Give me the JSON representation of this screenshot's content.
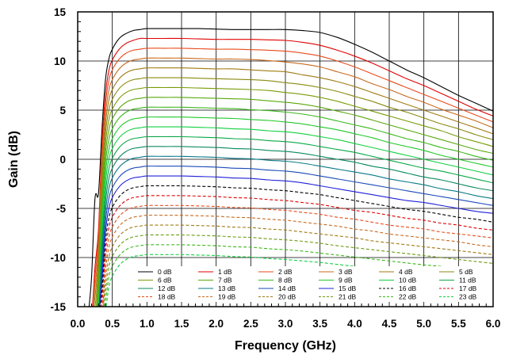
{
  "chart_data": {
    "type": "line",
    "xlabel": "Frequency (GHz)",
    "ylabel": "Gain (dB)",
    "xlim": [
      0,
      6
    ],
    "ylim": [
      -15,
      15
    ],
    "x_ticks": [
      "0.0",
      "0.5",
      "1.0",
      "1.5",
      "2.0",
      "2.5",
      "3.0",
      "3.5",
      "4.0",
      "4.5",
      "5.0",
      "5.5",
      "6.0"
    ],
    "y_ticks": [
      "-15",
      "-10",
      "-5",
      "0",
      "5",
      "10",
      "15"
    ],
    "grid": true,
    "legend_placement": "bottom-center",
    "legend_columns": 6,
    "x": [
      0.15,
      0.2,
      0.25,
      0.3,
      0.35,
      0.4,
      0.45,
      0.5,
      0.6,
      0.7,
      0.8,
      0.9,
      1.0,
      1.25,
      1.5,
      1.75,
      2.0,
      2.25,
      2.5,
      2.75,
      3.0,
      3.25,
      3.5,
      3.75,
      4.0,
      4.25,
      4.5,
      4.75,
      5.0,
      5.25,
      5.5,
      5.75,
      6.0
    ],
    "series": [
      {
        "name": "0 dB",
        "color": "#000000",
        "dash": false,
        "values": [
          -16.0,
          -12.0,
          -4.0,
          -3.5,
          3.0,
          8.0,
          10.2,
          11.2,
          12.3,
          12.8,
          13.1,
          13.2,
          13.3,
          13.3,
          13.3,
          13.3,
          13.25,
          13.2,
          13.2,
          13.2,
          13.2,
          13.1,
          12.9,
          12.4,
          11.7,
          10.9,
          10.0,
          9.1,
          8.3,
          7.4,
          6.5,
          5.7,
          4.9
        ]
      },
      {
        "name": "1 dB",
        "color": "#e00000",
        "dash": false,
        "values": [
          -16.0,
          -16.0,
          -11.0,
          -7.2,
          1.5,
          6.5,
          9.0,
          10.1,
          11.2,
          11.8,
          12.1,
          12.3,
          12.3,
          12.3,
          12.3,
          12.25,
          12.2,
          12.2,
          12.2,
          12.15,
          12.1,
          11.9,
          11.6,
          11.1,
          10.5,
          9.8,
          9.0,
          8.2,
          7.5,
          6.7,
          5.9,
          5.1,
          4.4
        ]
      },
      {
        "name": "2 dB",
        "color": "#e84a1a",
        "dash": false,
        "values": [
          -16.0,
          -16.0,
          -12.0,
          -8.0,
          0.6,
          5.5,
          8.0,
          9.1,
          10.2,
          10.8,
          11.1,
          11.2,
          11.3,
          11.3,
          11.3,
          11.25,
          11.2,
          11.2,
          11.15,
          11.1,
          11.0,
          10.8,
          10.5,
          10.0,
          9.4,
          8.7,
          8.0,
          7.3,
          6.6,
          5.9,
          5.2,
          4.5,
          3.8
        ]
      },
      {
        "name": "3 dB",
        "color": "#c86a1e",
        "dash": false,
        "values": [
          -16.0,
          -16.0,
          -13.0,
          -9.0,
          -0.4,
          4.5,
          7.0,
          8.1,
          9.2,
          9.8,
          10.1,
          10.2,
          10.3,
          10.3,
          10.3,
          10.25,
          10.2,
          10.2,
          10.15,
          10.05,
          9.9,
          9.7,
          9.4,
          8.9,
          8.4,
          7.7,
          7.1,
          6.4,
          5.8,
          5.1,
          4.5,
          3.9,
          3.2
        ]
      },
      {
        "name": "4 dB",
        "color": "#a07a12",
        "dash": false,
        "values": [
          -16.0,
          -16.0,
          -14.0,
          -10.0,
          -1.4,
          3.5,
          6.0,
          7.1,
          8.2,
          8.8,
          9.1,
          9.2,
          9.3,
          9.3,
          9.3,
          9.25,
          9.2,
          9.2,
          9.1,
          9.0,
          8.9,
          8.6,
          8.3,
          7.9,
          7.4,
          6.8,
          6.2,
          5.6,
          5.0,
          4.4,
          3.8,
          3.2,
          2.6
        ]
      },
      {
        "name": "5 dB",
        "color": "#8a8a10",
        "dash": false,
        "values": [
          -16.0,
          -16.0,
          -15.0,
          -11.0,
          -2.4,
          2.5,
          5.0,
          6.1,
          7.2,
          7.8,
          8.1,
          8.2,
          8.3,
          8.3,
          8.3,
          8.25,
          8.2,
          8.15,
          8.1,
          8.0,
          7.8,
          7.6,
          7.3,
          6.9,
          6.4,
          5.9,
          5.3,
          4.8,
          4.2,
          3.6,
          3.1,
          2.5,
          2.0
        ]
      },
      {
        "name": "6 dB",
        "color": "#7a9c0a",
        "dash": false,
        "values": [
          -16.0,
          -16.0,
          -16.0,
          -12.0,
          -3.4,
          1.5,
          4.0,
          5.1,
          6.2,
          6.8,
          7.1,
          7.2,
          7.3,
          7.3,
          7.3,
          7.25,
          7.2,
          7.15,
          7.1,
          7.0,
          6.8,
          6.6,
          6.3,
          5.9,
          5.4,
          4.9,
          4.4,
          3.9,
          3.4,
          2.9,
          2.3,
          1.8,
          1.3
        ]
      },
      {
        "name": "7 dB",
        "color": "#5aa80c",
        "dash": false,
        "values": [
          -16.0,
          -16.0,
          -16.0,
          -13.0,
          -4.4,
          0.5,
          3.0,
          4.1,
          5.2,
          5.8,
          6.1,
          6.2,
          6.3,
          6.3,
          6.3,
          6.25,
          6.2,
          6.15,
          6.1,
          5.95,
          5.8,
          5.6,
          5.3,
          4.9,
          4.5,
          4.0,
          3.5,
          3.0,
          2.5,
          2.0,
          1.5,
          1.0,
          0.6
        ]
      },
      {
        "name": "8 dB",
        "color": "#3cb81c",
        "dash": false,
        "values": [
          -16.0,
          -16.0,
          -16.0,
          -14.0,
          -5.4,
          -0.5,
          2.0,
          3.1,
          4.2,
          4.8,
          5.1,
          5.2,
          5.3,
          5.3,
          5.3,
          5.25,
          5.2,
          5.15,
          5.05,
          4.95,
          4.8,
          4.6,
          4.3,
          3.9,
          3.5,
          3.1,
          2.6,
          2.1,
          1.7,
          1.2,
          0.8,
          0.3,
          -0.1
        ]
      },
      {
        "name": "9 dB",
        "color": "#22c82a",
        "dash": false,
        "values": [
          -16.0,
          -16.0,
          -16.0,
          -15.0,
          -6.4,
          -1.5,
          1.0,
          2.1,
          3.2,
          3.8,
          4.1,
          4.2,
          4.3,
          4.3,
          4.3,
          4.25,
          4.2,
          4.15,
          4.05,
          3.95,
          3.8,
          3.6,
          3.3,
          3.0,
          2.6,
          2.2,
          1.7,
          1.3,
          0.9,
          0.4,
          0.0,
          -0.4,
          -0.8
        ]
      },
      {
        "name": "10 dB",
        "color": "#10d040",
        "dash": false,
        "values": [
          -16.0,
          -16.0,
          -16.0,
          -16.0,
          -7.4,
          -2.5,
          0.0,
          1.1,
          2.2,
          2.8,
          3.1,
          3.2,
          3.3,
          3.3,
          3.3,
          3.25,
          3.2,
          3.1,
          3.05,
          2.9,
          2.8,
          2.6,
          2.3,
          2.0,
          1.6,
          1.2,
          0.8,
          0.4,
          0.0,
          -0.4,
          -0.8,
          -1.2,
          -1.6
        ]
      },
      {
        "name": "11 dB",
        "color": "#0aa848",
        "dash": false,
        "values": [
          -16.0,
          -16.0,
          -16.0,
          -16.0,
          -8.4,
          -3.5,
          -1.0,
          0.1,
          1.2,
          1.8,
          2.1,
          2.2,
          2.3,
          2.3,
          2.3,
          2.25,
          2.2,
          2.1,
          2.05,
          1.9,
          1.8,
          1.6,
          1.3,
          1.0,
          0.7,
          0.3,
          -0.1,
          -0.5,
          -0.9,
          -1.2,
          -1.6,
          -2.0,
          -2.4
        ]
      },
      {
        "name": "12 dB",
        "color": "#0a8a60",
        "dash": false,
        "values": [
          -16.0,
          -16.0,
          -16.0,
          -16.0,
          -9.4,
          -4.5,
          -2.0,
          -0.9,
          0.2,
          0.8,
          1.1,
          1.2,
          1.3,
          1.3,
          1.3,
          1.25,
          1.2,
          1.1,
          1.05,
          0.9,
          0.8,
          0.6,
          0.3,
          0.0,
          -0.3,
          -0.7,
          -1.0,
          -1.4,
          -1.8,
          -2.1,
          -2.5,
          -2.9,
          -3.2
        ]
      },
      {
        "name": "13 dB",
        "color": "#0a7a88",
        "dash": false,
        "values": [
          -16.0,
          -16.0,
          -16.0,
          -16.0,
          -10.4,
          -5.5,
          -3.0,
          -1.9,
          -0.8,
          -0.2,
          0.1,
          0.2,
          0.3,
          0.3,
          0.3,
          0.25,
          0.2,
          0.1,
          0.05,
          -0.1,
          -0.2,
          -0.4,
          -0.7,
          -1.0,
          -1.3,
          -1.6,
          -2.0,
          -2.3,
          -2.6,
          -3.0,
          -3.3,
          -3.7,
          -4.0
        ]
      },
      {
        "name": "14 dB",
        "color": "#1a4ab8",
        "dash": false,
        "values": [
          -16.0,
          -16.0,
          -16.0,
          -16.0,
          -11.4,
          -6.5,
          -4.0,
          -2.9,
          -1.8,
          -1.2,
          -0.9,
          -0.8,
          -0.7,
          -0.7,
          -0.7,
          -0.75,
          -0.8,
          -0.9,
          -0.95,
          -1.1,
          -1.2,
          -1.4,
          -1.7,
          -2.0,
          -2.3,
          -2.6,
          -2.9,
          -3.2,
          -3.5,
          -3.8,
          -4.1,
          -4.4,
          -4.7
        ]
      },
      {
        "name": "15 dB",
        "color": "#2020d8",
        "dash": false,
        "values": [
          -16.0,
          -16.0,
          -16.0,
          -16.0,
          -12.4,
          -7.5,
          -5.0,
          -3.9,
          -2.8,
          -2.2,
          -1.9,
          -1.8,
          -1.7,
          -1.7,
          -1.7,
          -1.75,
          -1.8,
          -1.9,
          -1.95,
          -2.1,
          -2.2,
          -2.4,
          -2.7,
          -3.0,
          -3.3,
          -3.6,
          -3.9,
          -4.2,
          -4.4,
          -4.7,
          -5.0,
          -5.3,
          -5.5
        ]
      },
      {
        "name": "16 dB",
        "color": "#000000",
        "dash": true,
        "values": [
          -16.0,
          -16.0,
          -16.0,
          -16.0,
          -13.4,
          -8.5,
          -6.0,
          -4.9,
          -3.8,
          -3.2,
          -2.9,
          -2.8,
          -2.7,
          -2.7,
          -2.7,
          -2.75,
          -2.8,
          -2.9,
          -2.95,
          -3.1,
          -3.2,
          -3.4,
          -3.6,
          -3.9,
          -4.2,
          -4.5,
          -4.8,
          -5.1,
          -5.3,
          -5.6,
          -5.9,
          -6.1,
          -6.4
        ]
      },
      {
        "name": "17 dB",
        "color": "#e00000",
        "dash": true,
        "values": [
          -16.0,
          -16.0,
          -16.0,
          -16.0,
          -14.4,
          -9.5,
          -7.0,
          -5.9,
          -4.8,
          -4.2,
          -3.9,
          -3.8,
          -3.7,
          -3.7,
          -3.7,
          -3.75,
          -3.8,
          -3.9,
          -3.95,
          -4.1,
          -4.2,
          -4.4,
          -4.6,
          -4.9,
          -5.2,
          -5.4,
          -5.7,
          -6.0,
          -6.2,
          -6.5,
          -6.7,
          -7.0,
          -7.2
        ]
      },
      {
        "name": "18 dB",
        "color": "#e84a1a",
        "dash": true,
        "values": [
          -16.0,
          -16.0,
          -16.0,
          -16.0,
          -15.4,
          -10.5,
          -8.0,
          -6.9,
          -5.8,
          -5.2,
          -4.9,
          -4.8,
          -4.7,
          -4.7,
          -4.7,
          -4.75,
          -4.8,
          -4.9,
          -4.95,
          -5.1,
          -5.2,
          -5.4,
          -5.6,
          -5.9,
          -6.1,
          -6.4,
          -6.7,
          -6.9,
          -7.1,
          -7.4,
          -7.6,
          -7.8,
          -8.0
        ]
      },
      {
        "name": "19 dB",
        "color": "#c86a1e",
        "dash": true,
        "values": [
          -16.0,
          -16.0,
          -16.0,
          -16.0,
          -16.0,
          -11.5,
          -9.0,
          -7.9,
          -6.8,
          -6.2,
          -5.9,
          -5.8,
          -5.7,
          -5.7,
          -5.7,
          -5.75,
          -5.8,
          -5.9,
          -5.95,
          -6.1,
          -6.2,
          -6.4,
          -6.6,
          -6.8,
          -7.1,
          -7.3,
          -7.6,
          -7.8,
          -8.0,
          -8.2,
          -8.4,
          -8.7,
          -8.9
        ]
      },
      {
        "name": "20 dB",
        "color": "#a07a12",
        "dash": true,
        "values": [
          -16.0,
          -16.0,
          -16.0,
          -16.0,
          -16.0,
          -12.5,
          -10.0,
          -8.9,
          -7.8,
          -7.2,
          -6.9,
          -6.8,
          -6.7,
          -6.7,
          -6.7,
          -6.75,
          -6.8,
          -6.9,
          -6.95,
          -7.1,
          -7.2,
          -7.4,
          -7.6,
          -7.8,
          -8.0,
          -8.3,
          -8.5,
          -8.7,
          -8.9,
          -9.1,
          -9.3,
          -9.5,
          -9.7
        ]
      },
      {
        "name": "21 dB",
        "color": "#6a9a10",
        "dash": true,
        "values": [
          -16.0,
          -16.0,
          -16.0,
          -16.0,
          -16.0,
          -13.5,
          -11.0,
          -9.9,
          -8.8,
          -8.2,
          -7.9,
          -7.8,
          -7.7,
          -7.7,
          -7.7,
          -7.75,
          -7.8,
          -7.9,
          -7.95,
          -8.1,
          -8.2,
          -8.35,
          -8.55,
          -8.8,
          -9.0,
          -9.2,
          -9.4,
          -9.6,
          -9.8,
          -10.0,
          -10.2,
          -10.4,
          -10.6
        ]
      },
      {
        "name": "22 dB",
        "color": "#3cb81c",
        "dash": true,
        "values": [
          -16.0,
          -16.0,
          -16.0,
          -16.0,
          -16.0,
          -14.5,
          -12.0,
          -10.9,
          -9.8,
          -9.2,
          -8.9,
          -8.8,
          -8.7,
          -8.7,
          -8.7,
          -8.75,
          -8.8,
          -8.9,
          -8.95,
          -9.1,
          -9.2,
          -9.35,
          -9.55,
          -9.75,
          -9.95,
          -10.15,
          -10.35,
          -10.55,
          -10.75,
          -10.9,
          -11.1,
          -11.3,
          -11.5
        ]
      },
      {
        "name": "23 dB",
        "color": "#10d040",
        "dash": true,
        "values": [
          -16.0,
          -16.0,
          -16.0,
          -16.0,
          -16.0,
          -15.5,
          -13.0,
          -11.9,
          -10.8,
          -10.2,
          -9.9,
          -9.8,
          -9.7,
          -9.7,
          -9.7,
          -9.75,
          -9.8,
          -9.9,
          -9.95,
          -10.1,
          -10.2,
          -10.35,
          -10.5,
          -10.7,
          -10.9,
          -11.1,
          -11.3,
          -11.45,
          -11.65,
          -11.8,
          -12.0,
          -12.2,
          -12.4
        ]
      }
    ]
  }
}
